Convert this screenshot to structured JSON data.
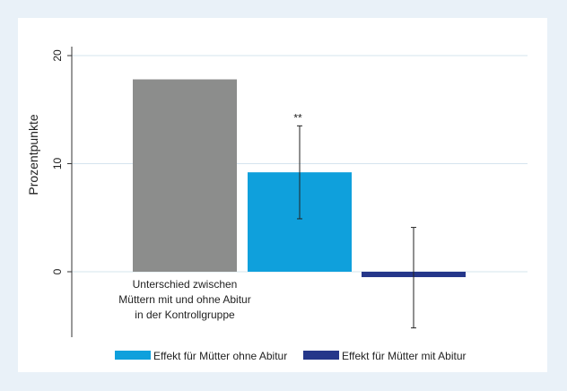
{
  "chart_data": {
    "type": "bar",
    "ylabel": "Prozentpunkte",
    "ylim": [
      -6,
      20
    ],
    "yticks": [
      0,
      10,
      20
    ],
    "grid": true,
    "bars": [
      {
        "label_lines": [
          "Unterschied zwischen",
          "Müttern mit und ohne Abitur",
          "in der Kontrollgruppe"
        ],
        "value": 17.8,
        "color": "#8c8d8c",
        "ci": null,
        "significance": ""
      },
      {
        "label_lines": [],
        "value": 9.2,
        "color": "#0fa0dc",
        "ci": [
          4.9,
          13.5
        ],
        "significance": "**"
      },
      {
        "label_lines": [],
        "value": -0.5,
        "color": "#25378a",
        "ci": [
          -5.2,
          4.1
        ],
        "significance": ""
      }
    ],
    "legend": {
      "position": "bottom",
      "entries": [
        {
          "label": "Effekt für Mütter ohne Abitur",
          "color": "#0fa0dc"
        },
        {
          "label": "Effekt für Mütter mit Abitur",
          "color": "#25378a"
        }
      ]
    }
  }
}
